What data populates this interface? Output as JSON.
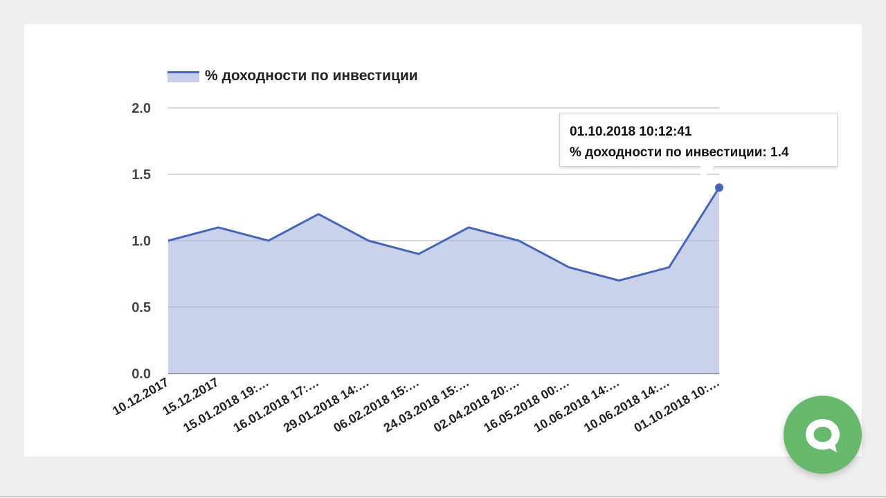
{
  "chart_data": {
    "type": "area",
    "legend": "% доходности по инвестиции",
    "legend_position": "top-left",
    "series": [
      {
        "name": "% доходности по инвестиции",
        "color": "#4465b8",
        "fill": "#c7cfea",
        "values": [
          1.0,
          1.1,
          1.0,
          1.2,
          1.0,
          0.9,
          1.1,
          1.0,
          0.8,
          0.7,
          0.8,
          1.4
        ]
      }
    ],
    "categories": [
      "10.12.2017",
      "15.12.2017",
      "15.01.2018 19:…",
      "16.01.2018 17:…",
      "29.01.2018 14:…",
      "06.02.2018 15:…",
      "24.03.2018 15:…",
      "02.04.2018 20:…",
      "16.05.2018 00:…",
      "10.06.2018 14:…",
      "10.06.2018 14:…",
      "01.10.2018 10:…"
    ],
    "y_ticks": [
      "0.0",
      "0.5",
      "1.0",
      "1.5",
      "2.0"
    ],
    "ylim": [
      0,
      2.0
    ],
    "grid": true
  },
  "tooltip": {
    "line1": "01.10.2018 10:12:41",
    "line2": "% доходности по инвестиции: 1.4",
    "point_index": 11
  },
  "chat": {
    "icon": "chat-bubble-icon",
    "color": "#68b96e"
  }
}
